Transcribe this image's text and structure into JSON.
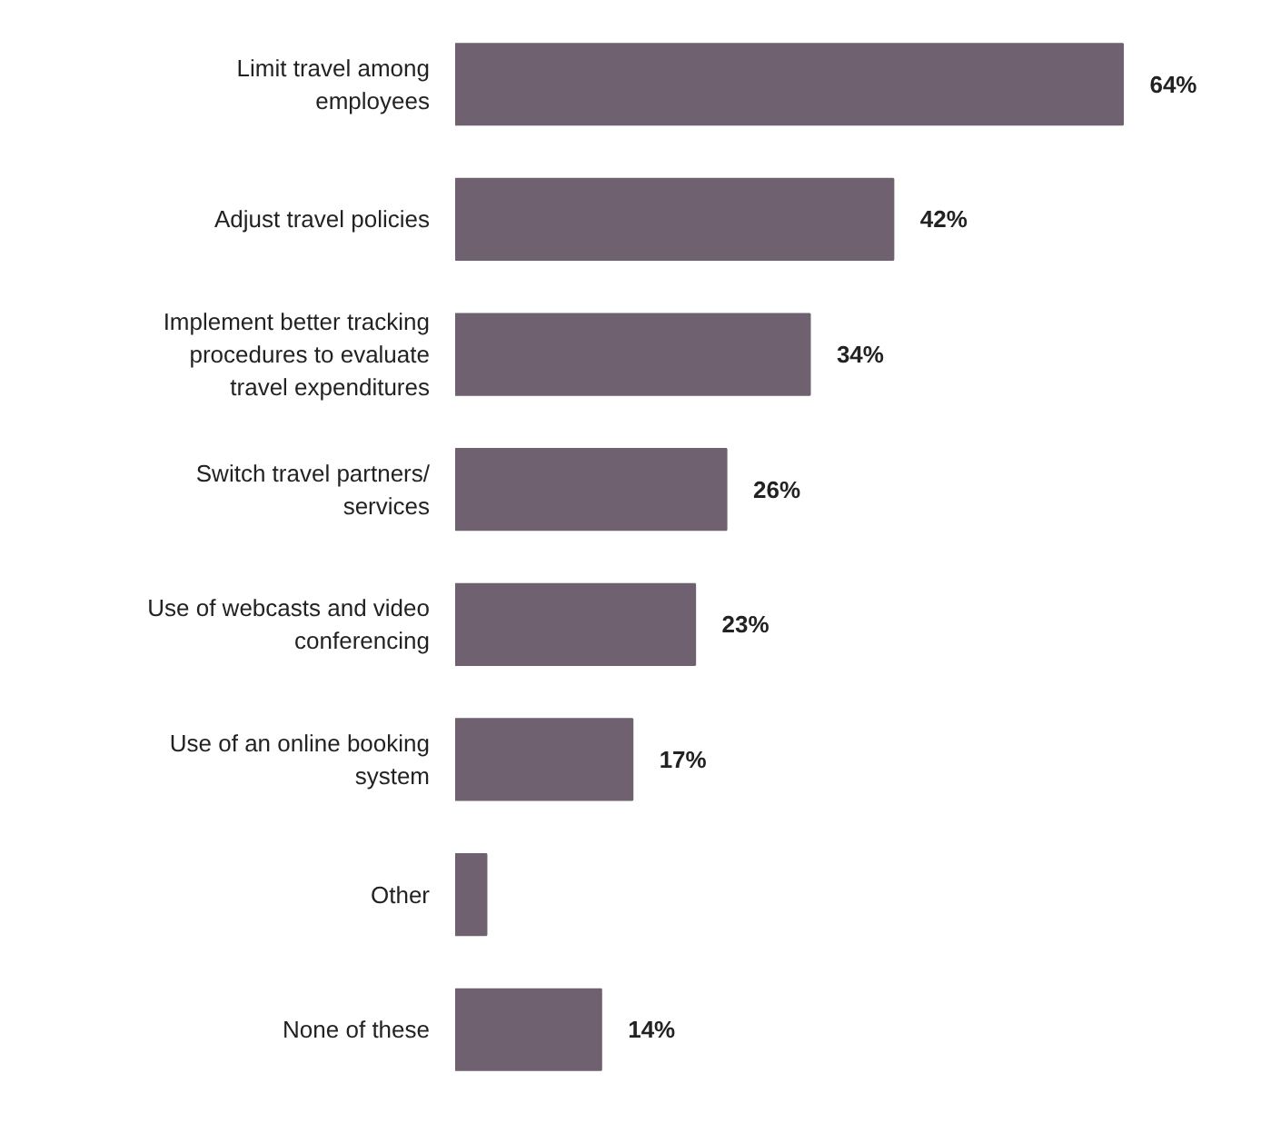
{
  "chart_data": {
    "type": "bar",
    "orientation": "horizontal",
    "categories": [
      "Limit travel among employees",
      "Adjust travel policies",
      "Implement better tracking procedures to evaluate travel expenditures",
      "Switch travel partners/ services",
      "Use of webcasts and video conferencing",
      "Use of an online booking system",
      "Other",
      "None of these"
    ],
    "values": [
      64,
      42,
      34,
      26,
      23,
      17,
      3,
      14
    ],
    "value_labels": [
      "64%",
      "42%",
      "34%",
      "26%",
      "23%",
      "17%",
      null,
      "14%"
    ],
    "color": "#6f6170"
  }
}
